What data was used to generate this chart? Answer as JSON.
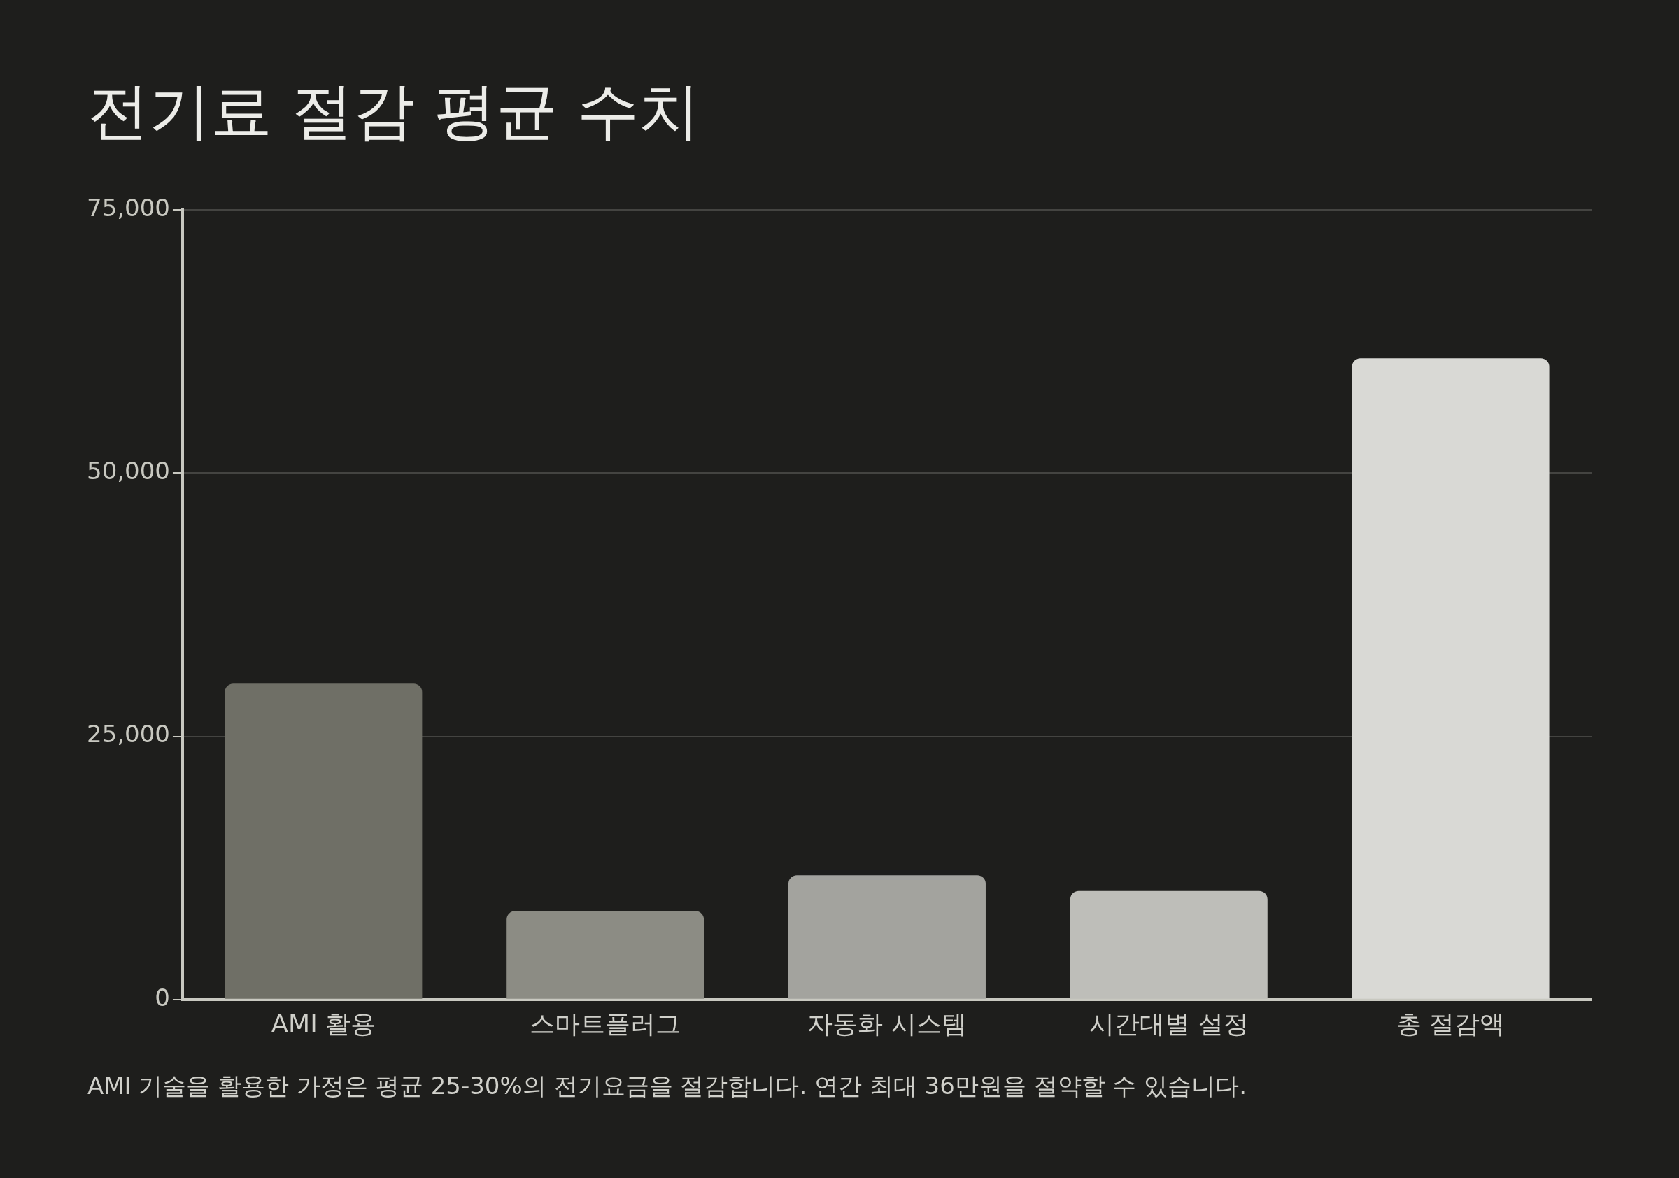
{
  "chart_data": {
    "type": "bar",
    "title": "전기료 절감 평균 수치",
    "categories": [
      "AMI 활용",
      "스마트플러그",
      "자동화 시스템",
      "시간대별 설정",
      "총 절감액"
    ],
    "values": [
      30000,
      8400,
      11800,
      10300,
      60900
    ],
    "colors": [
      "#6f6f66",
      "#8c8c84",
      "#a3a39e",
      "#bebeb9",
      "#d9d9d5"
    ],
    "ylim": [
      0,
      75000
    ],
    "yticks": [
      {
        "value": 0,
        "label": "0"
      },
      {
        "value": 25000,
        "label": "25,000"
      },
      {
        "value": 50000,
        "label": "50,000"
      },
      {
        "value": 75000,
        "label": "75,000"
      }
    ],
    "grid": "y",
    "legend": false,
    "annotations": [
      "AMI 기술을 활용한 가정은 평균 25-30%의 전기요금을 절감합니다. 연간 최대 36만원을 절약할 수 있습니다."
    ]
  }
}
